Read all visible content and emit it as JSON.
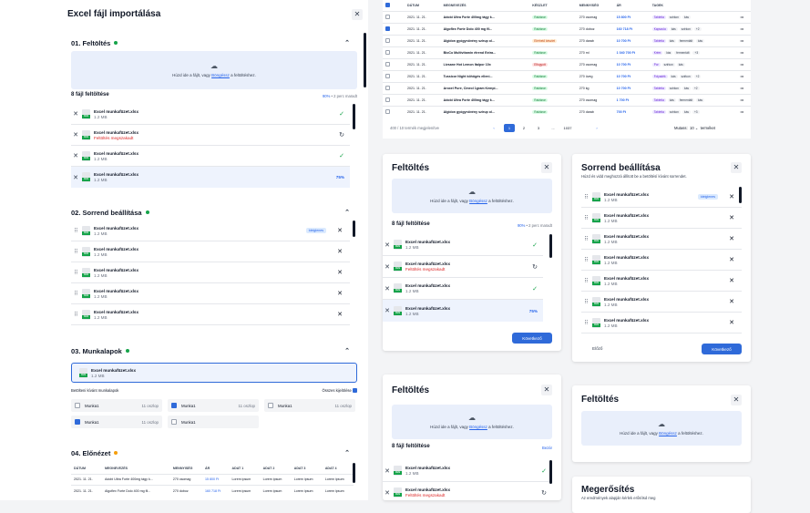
{
  "colors": {
    "accent": "#2f6ad9",
    "success": "#16a34a",
    "danger": "#dc2626",
    "warning": "#f59e0b",
    "dropzone": "#e9effb"
  },
  "modal": {
    "title": "Excel fájl importálása",
    "upload": {
      "title": "01. Feltöltés",
      "drop_text": "Húzd ide a fájlt, vagy ",
      "drop_link": "Böngéssz",
      "drop_tail": " a feltöltéshez.",
      "count_label": "8 fájl feltöltése",
      "progress": "90%",
      "remaining": " • 2 perc maradt"
    },
    "files": [
      {
        "name": "Excel munkafüzet.xlsx",
        "size": "1.2 MB",
        "status": "ok"
      },
      {
        "name": "Excel munkafüzet.xlsx",
        "size": "Feltöltés megszakadt",
        "status": "retry"
      },
      {
        "name": "Excel munkafüzet.xlsx",
        "size": "1.2 MB",
        "status": "ok"
      },
      {
        "name": "Excel munkafüzet.xlsx",
        "size": "1.2 MB",
        "status": "75%"
      }
    ],
    "order": {
      "title": "02. Sorrend beállítása",
      "badge": "Ideiglenes",
      "items": [
        {
          "name": "Excel munkafüzet.xlsx",
          "size": "1.2 MB"
        },
        {
          "name": "Excel munkafüzet.xlsx",
          "size": "1.2 MB"
        },
        {
          "name": "Excel munkafüzet.xlsx",
          "size": "1.2 MB"
        },
        {
          "name": "Excel munkafüzet.xlsx",
          "size": "1.2 MB"
        },
        {
          "name": "Excel munkafüzet.xlsx",
          "size": "1.2 MB"
        }
      ]
    },
    "sheets": {
      "title": "03. Munkalapok",
      "file_name": "Excel munkafüzet.xlsx",
      "file_size": "1.2 MB",
      "label": "Betölteni kívánt munkalapok",
      "select_all": "Összes kijelölése",
      "items": [
        {
          "name": "Munka1",
          "count": "11 oszlop",
          "on": false
        },
        {
          "name": "Munka1",
          "count": "11 oszlop",
          "on": true
        },
        {
          "name": "Munka1",
          "count": "11 oszlop",
          "on": false
        },
        {
          "name": "Munka1",
          "count": "11 oszlop",
          "on": true
        },
        {
          "name": "Munka1",
          "count": "",
          "on": false
        }
      ]
    },
    "preview": {
      "title": "04. Előnézet",
      "headers": [
        "DÁTUM",
        "MEGNEVEZÉS",
        "MENNYISÉG",
        "ÁR",
        "ADAT 1",
        "ADAT 2",
        "ADAT 3",
        "ADAT 4"
      ],
      "rows": [
        [
          "2021. 11. 21.",
          "Adobi Ultra Forte 400mg tágy k...",
          "270 csomag",
          "15 800 Ft",
          "Lorem ipsum",
          "Lorem ipsum",
          "Lorem ipsum",
          "Lorem ipsum"
        ],
        [
          "2021. 11. 21.",
          "Algoflex Forte Dolo 400 mg fil...",
          "270 doboz",
          "160 718 Ft",
          "Lorem ipsum",
          "Lorem ipsum",
          "Lorem ipsum",
          "Lorem ipsum"
        ]
      ]
    }
  },
  "table": {
    "headers": [
      "DÁTUM",
      "MEGNEVEZÉS",
      "KÉSZLET",
      "MENNYISÉG",
      "ÁR",
      "TAGEK"
    ],
    "rows": [
      {
        "date": "2021. 11. 21.",
        "name": "Adobi Ultra Forte 400mg tágy k...",
        "stock": "Raktáron",
        "stock_type": "green",
        "qty": "270 csomag",
        "price": "15 800 Ft",
        "checked": false
      },
      {
        "date": "2021. 11. 21.",
        "name": "Algoflex Forte Dolo 400 mg fil...",
        "stock": "Raktáron",
        "stock_type": "green",
        "qty": "270 doboz",
        "price": "160 718 Ft",
        "checked": true
      },
      {
        "date": "2021. 11. 21.",
        "name": "Algidon gyógynövény szirup ol...",
        "stock": "Elérhető készlet",
        "stock_type": "orange",
        "qty": "270 darab",
        "price": "10 700 Ft",
        "checked": false
      },
      {
        "date": "2021. 11. 21.",
        "name": "BioCo Multivitamin étrend Extra...",
        "stock": "Raktáron",
        "stock_type": "green",
        "qty": "270 ml",
        "price": "1 040 700 Ft",
        "checked": false
      },
      {
        "date": "2021. 11. 21.",
        "name": "Livsane Hot Lemon Italpor 10x",
        "stock": "Elfogyott",
        "stock_type": "red",
        "qty": "270 csomag",
        "price": "10 700 Ft",
        "checked": false
      },
      {
        "date": "2021. 11. 21.",
        "name": "Tussicor Night köhögés elleni...",
        "stock": "Raktáron",
        "stock_type": "green",
        "qty": "270 üveg",
        "price": "10 700 Ft",
        "checked": false
      },
      {
        "date": "2021. 11. 21.",
        "name": "Aroxel Pure, Cineol 1gram Kempi...",
        "stock": "Raktáron",
        "stock_type": "green",
        "qty": "270 kg",
        "price": "10 700 Ft",
        "checked": false
      },
      {
        "date": "2021. 11. 21.",
        "name": "Adobi Ultra Forte 400mg tágy k...",
        "stock": "Raktáron",
        "stock_type": "green",
        "qty": "270 csomag",
        "price": "1 700 Ft",
        "checked": false
      },
      {
        "date": "2021. 11. 21.",
        "name": "Algidon gyógynövény szirup ol...",
        "stock": "Raktáron",
        "stock_type": "green",
        "qty": "270 darab",
        "price": "700 Ft",
        "checked": false
      }
    ],
    "tags": [
      [
        "Tabletta",
        "szirkon",
        "kás"
      ],
      [
        "Kapszula",
        "kás",
        "szirkon",
        "+2"
      ],
      [
        "Tabletta",
        "kás",
        "fermentált",
        "kás"
      ],
      [
        "Krém",
        "kás",
        "fermentált",
        "+3"
      ],
      [
        "Por",
        "szirkon",
        "kás"
      ],
      [
        "Folyadék",
        "kás",
        "szirkon",
        "+2"
      ],
      [
        "Tabletta",
        "szirkon",
        "kás",
        "+2"
      ],
      [
        "Tabletta",
        "kás",
        "fermentált",
        "kás"
      ],
      [
        "Tabletta",
        "szirkon",
        "kás",
        "+3"
      ]
    ],
    "footer_count": "400 / 10 termék megjelenítve",
    "pages": [
      "1",
      "2",
      "3",
      "...",
      "1037"
    ],
    "per_page_label": "Mutass:",
    "per_page": "10",
    "per_page_tail": "terméket"
  },
  "card_upload1": {
    "title": "Feltöltés",
    "count_label": "8 fájl feltöltése",
    "progress": "90%",
    "remaining": " • 2 perc maradt",
    "files": [
      {
        "name": "Excel munkafüzet.xlsx",
        "size": "1.2 MB",
        "status": "ok"
      },
      {
        "name": "Excel munkafüzet.xlsx",
        "size": "Feltöltés megszakadt",
        "status": "retry"
      },
      {
        "name": "Excel munkafüzet.xlsx",
        "size": "1.2 MB",
        "status": "ok"
      },
      {
        "name": "Excel munkafüzet.xlsx",
        "size": "1.2 MB",
        "status": "75%"
      }
    ],
    "continue": "Következő"
  },
  "card_order": {
    "title": "Sorrend beállítása",
    "subtitle": "Húzd és vidd meghozzá állított be a betöltésí kívánt sorrendet.",
    "badge": "Ideiglenes",
    "items": [
      {
        "name": "Excel munkafüzet.xlsx",
        "size": "1.2 MB"
      },
      {
        "name": "Excel munkafüzet.xlsx",
        "size": "1.2 MB"
      },
      {
        "name": "Excel munkafüzet.xlsx",
        "size": "1.2 MB"
      },
      {
        "name": "Excel munkafüzet.xlsx",
        "size": "1.2 MB"
      },
      {
        "name": "Excel munkafüzet.xlsx",
        "size": "1.2 MB"
      },
      {
        "name": "Excel munkafüzet.xlsx",
        "size": "1.2 MB"
      },
      {
        "name": "Excel munkafüzet.xlsx",
        "size": "1.2 MB"
      }
    ],
    "back": "Előző",
    "continue": "Következő"
  },
  "card_upload2": {
    "title": "Feltöltés",
    "count_label": "8 fájl feltöltése",
    "cancel": "Bezár",
    "files": [
      {
        "name": "Excel munkafüzet.xlsx",
        "size": "1.2 MB",
        "status": "ok"
      },
      {
        "name": "Excel munkafüzet.xlsx",
        "size": "Feltöltés megszakadt",
        "status": "retry"
      }
    ]
  },
  "card_upload3": {
    "title": "Feltöltés",
    "drop_text": "Húzd ide a fájlt, vagy ",
    "drop_link": "Böngéssz",
    "drop_tail": " a feltöltéshez."
  },
  "card_confirm": {
    "title": "Megerősítés",
    "subtitle": "Az eredmények alapján kérlek erősítsd meg"
  }
}
